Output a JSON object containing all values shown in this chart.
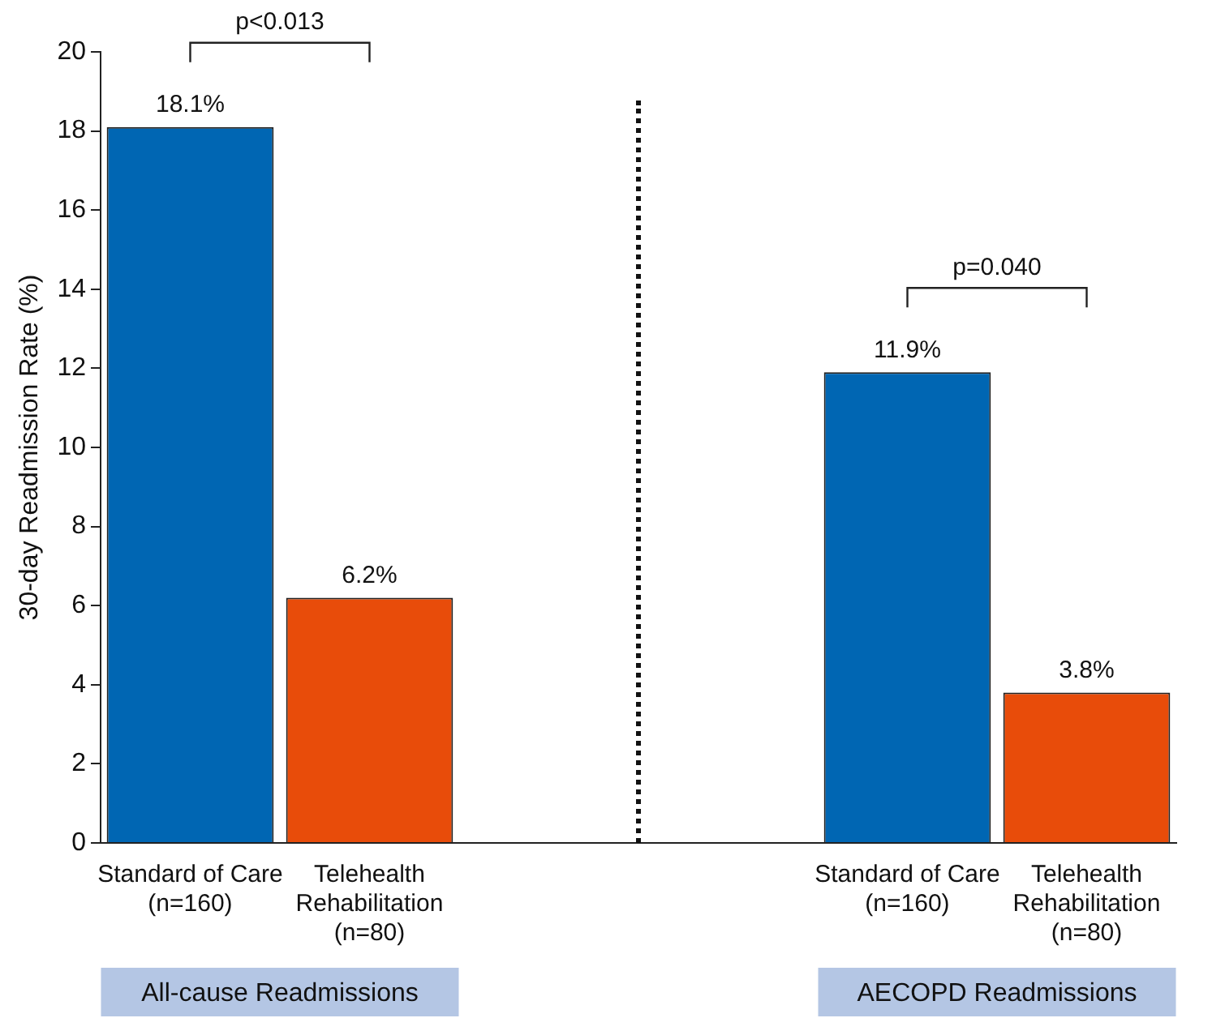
{
  "chart_data": {
    "type": "bar",
    "ylabel": "30-day Readmission Rate (%)",
    "categories": [
      "Standard of Care\n(n=160)",
      "Telehealth\nRehabilitation\n(n=80)",
      null,
      null,
      "Standard of Care\n(n=160)",
      "Telehealth\nRehabilitation\n(n=80)"
    ],
    "values": [
      18.1,
      6.2,
      null,
      null,
      11.9,
      3.8
    ],
    "colors": [
      "#0066b3",
      "#e84c0a",
      "#ffffff",
      "#ffffff",
      "#0066b3",
      "#e84c0a"
    ],
    "value_labels": [
      "18.1%",
      "6.2%",
      null,
      null,
      "11.9%",
      "3.8%"
    ],
    "ylim": [
      0,
      20
    ],
    "yticks": [
      0,
      2,
      4,
      6,
      8,
      10,
      12,
      14,
      16,
      18,
      20
    ],
    "grid": false,
    "legend": false,
    "annotations": [
      "p<0.013",
      "p=0.040",
      "All-cause Readmissions",
      "AECOPD Readmissions"
    ]
  }
}
